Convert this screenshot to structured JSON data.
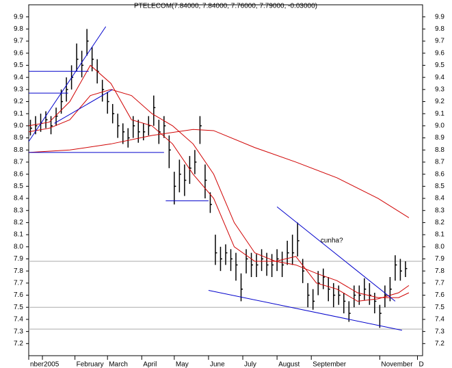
{
  "chart_data": {
    "type": "ohlc",
    "title": "PTELECOM(7.84000, 7.84000, 7.76000, 7.79000, -0.03000)",
    "xlim": [
      0,
      230
    ],
    "ylim": [
      7.1,
      10.0
    ],
    "yticks": [
      7.2,
      7.3,
      7.4,
      7.5,
      7.6,
      7.7,
      7.8,
      7.9,
      {
        "value": 8,
        "label": "8.0"
      },
      8.1,
      8.2,
      8.3,
      8.4,
      8.5,
      8.6,
      8.7,
      8.8,
      8.9,
      {
        "value": 9,
        "label": "9.0"
      },
      9.1,
      9.2,
      9.3,
      9.4,
      9.5,
      9.6,
      9.7,
      9.8,
      9.9
    ],
    "xticks": [
      {
        "value": 0,
        "label": "nber"
      },
      {
        "value": 8,
        "label": "2005"
      },
      {
        "value": 27,
        "label": "February"
      },
      {
        "value": 46,
        "label": "March"
      },
      {
        "value": 66,
        "label": "April"
      },
      {
        "value": 85,
        "label": "May"
      },
      {
        "value": 105,
        "label": "June"
      },
      {
        "value": 125,
        "label": "July"
      },
      {
        "value": 145,
        "label": "August"
      },
      {
        "value": 165,
        "label": "September"
      },
      {
        "value": 205,
        "label": "November"
      },
      {
        "value": 227,
        "label": "D"
      }
    ],
    "color": "#000000",
    "x": [
      1,
      4,
      7,
      10,
      13,
      16,
      19,
      22,
      25,
      28,
      31,
      34,
      37,
      40,
      43,
      46,
      49,
      52,
      55,
      58,
      61,
      64,
      67,
      70,
      73,
      76,
      79,
      82,
      85,
      88,
      91,
      94,
      97,
      100,
      103,
      106,
      109,
      112,
      115,
      118,
      121,
      124,
      127,
      130,
      133,
      136,
      139,
      142,
      145,
      148,
      151,
      154,
      157,
      160,
      163,
      166,
      169,
      172,
      175,
      178,
      181,
      184,
      187,
      190,
      193,
      196,
      199,
      202,
      205,
      208,
      211,
      214,
      217,
      220
    ],
    "close": [
      8.98,
      9.0,
      9.02,
      9.05,
      9.0,
      9.08,
      9.2,
      9.3,
      9.4,
      9.55,
      9.5,
      9.7,
      9.55,
      9.45,
      9.3,
      9.2,
      9.1,
      9.0,
      8.95,
      8.9,
      9.0,
      8.95,
      8.95,
      9.0,
      9.15,
      8.95,
      9.0,
      8.8,
      8.5,
      8.6,
      8.55,
      8.65,
      8.7,
      9.0,
      8.55,
      8.35,
      7.95,
      7.9,
      7.95,
      7.9,
      7.85,
      7.65,
      7.9,
      7.85,
      7.85,
      7.9,
      7.85,
      7.85,
      7.9,
      7.85,
      7.95,
      7.95,
      8.05,
      7.8,
      7.6,
      7.55,
      7.7,
      7.75,
      7.65,
      7.6,
      7.6,
      7.55,
      7.45,
      7.6,
      7.6,
      7.65,
      7.6,
      7.55,
      7.45,
      7.6,
      7.65,
      7.85,
      7.8,
      7.82
    ],
    "high": [
      9.05,
      9.08,
      9.1,
      9.12,
      9.08,
      9.15,
      9.3,
      9.4,
      9.5,
      9.68,
      9.62,
      9.8,
      9.65,
      9.55,
      9.38,
      9.28,
      9.18,
      9.1,
      9.02,
      8.98,
      9.08,
      9.05,
      9.02,
      9.08,
      9.25,
      9.05,
      9.08,
      8.92,
      8.62,
      8.72,
      8.68,
      8.75,
      8.8,
      9.08,
      8.68,
      8.45,
      8.1,
      8.0,
      8.02,
      7.98,
      7.95,
      7.78,
      7.98,
      7.95,
      7.94,
      7.98,
      7.95,
      7.94,
      7.98,
      7.96,
      8.05,
      8.1,
      8.2,
      7.9,
      7.7,
      7.65,
      7.8,
      7.82,
      7.75,
      7.7,
      7.68,
      7.62,
      7.55,
      7.68,
      7.68,
      7.74,
      7.7,
      7.62,
      7.52,
      7.68,
      7.75,
      7.93,
      7.9,
      7.88
    ],
    "low": [
      8.92,
      8.93,
      8.95,
      8.98,
      8.93,
      9.0,
      9.1,
      9.2,
      9.3,
      9.45,
      9.4,
      9.58,
      9.45,
      9.35,
      9.2,
      9.1,
      9.02,
      8.9,
      8.85,
      8.82,
      8.9,
      8.86,
      8.88,
      8.92,
      9.0,
      8.85,
      8.9,
      8.65,
      8.35,
      8.45,
      8.42,
      8.52,
      8.6,
      8.85,
      8.4,
      8.28,
      7.85,
      7.8,
      7.85,
      7.8,
      7.72,
      7.55,
      7.78,
      7.75,
      7.75,
      7.8,
      7.76,
      7.75,
      7.8,
      7.75,
      7.85,
      7.85,
      7.92,
      7.7,
      7.5,
      7.48,
      7.6,
      7.65,
      7.55,
      7.5,
      7.52,
      7.45,
      7.38,
      7.5,
      7.52,
      7.56,
      7.52,
      7.45,
      7.33,
      7.5,
      7.55,
      7.72,
      7.72,
      7.75
    ],
    "series": [
      {
        "color": "#d00000",
        "x": [
          0,
          12,
          24,
          36,
          48,
          60,
          72,
          84,
          96,
          108,
          120,
          132,
          144,
          156,
          168,
          180,
          192,
          204,
          216,
          222
        ],
        "values": [
          9.0,
          9.03,
          9.2,
          9.5,
          9.35,
          9.05,
          9.0,
          8.85,
          8.6,
          8.4,
          8.0,
          7.88,
          7.88,
          7.92,
          7.7,
          7.65,
          7.55,
          7.57,
          7.62,
          7.68
        ]
      },
      {
        "color": "#d00000",
        "x": [
          0,
          12,
          24,
          36,
          48,
          60,
          72,
          84,
          96,
          108,
          120,
          132,
          144,
          156,
          168,
          180,
          192,
          204,
          216,
          222
        ],
        "values": [
          8.95,
          8.98,
          9.05,
          9.25,
          9.3,
          9.25,
          9.1,
          9.0,
          8.85,
          8.6,
          8.2,
          7.95,
          7.88,
          7.85,
          7.78,
          7.72,
          7.62,
          7.58,
          7.58,
          7.62
        ]
      },
      {
        "color": "#d00000",
        "x": [
          0,
          24,
          48,
          72,
          96,
          108,
          132,
          156,
          180,
          204,
          222
        ],
        "values": [
          8.78,
          8.8,
          8.85,
          8.92,
          8.97,
          8.96,
          8.82,
          8.7,
          8.57,
          8.4,
          8.24
        ]
      }
    ],
    "trendlines": [
      {
        "x": [
          0,
          45
        ],
        "values": [
          8.87,
          9.82
        ]
      },
      {
        "x": [
          0,
          35
        ],
        "values": [
          9.45,
          9.45
        ]
      },
      {
        "x": [
          0,
          23
        ],
        "values": [
          9.27,
          9.27
        ]
      },
      {
        "x": [
          0,
          79
        ],
        "values": [
          8.78,
          8.78
        ]
      },
      {
        "x": [
          80,
          105
        ],
        "values": [
          8.38,
          8.38
        ]
      },
      {
        "x": [
          15,
          49
        ],
        "values": [
          9.02,
          9.3
        ]
      },
      {
        "x": [
          145,
          214
        ],
        "values": [
          8.33,
          7.55
        ]
      },
      {
        "x": [
          105,
          218
        ],
        "values": [
          7.64,
          7.31
        ]
      }
    ],
    "trendline_color": "#0000cc",
    "hlines": [
      7.32,
      7.5,
      7.88
    ],
    "annotation": {
      "text": "cunha?",
      "x": 177,
      "y": 8.05
    }
  }
}
